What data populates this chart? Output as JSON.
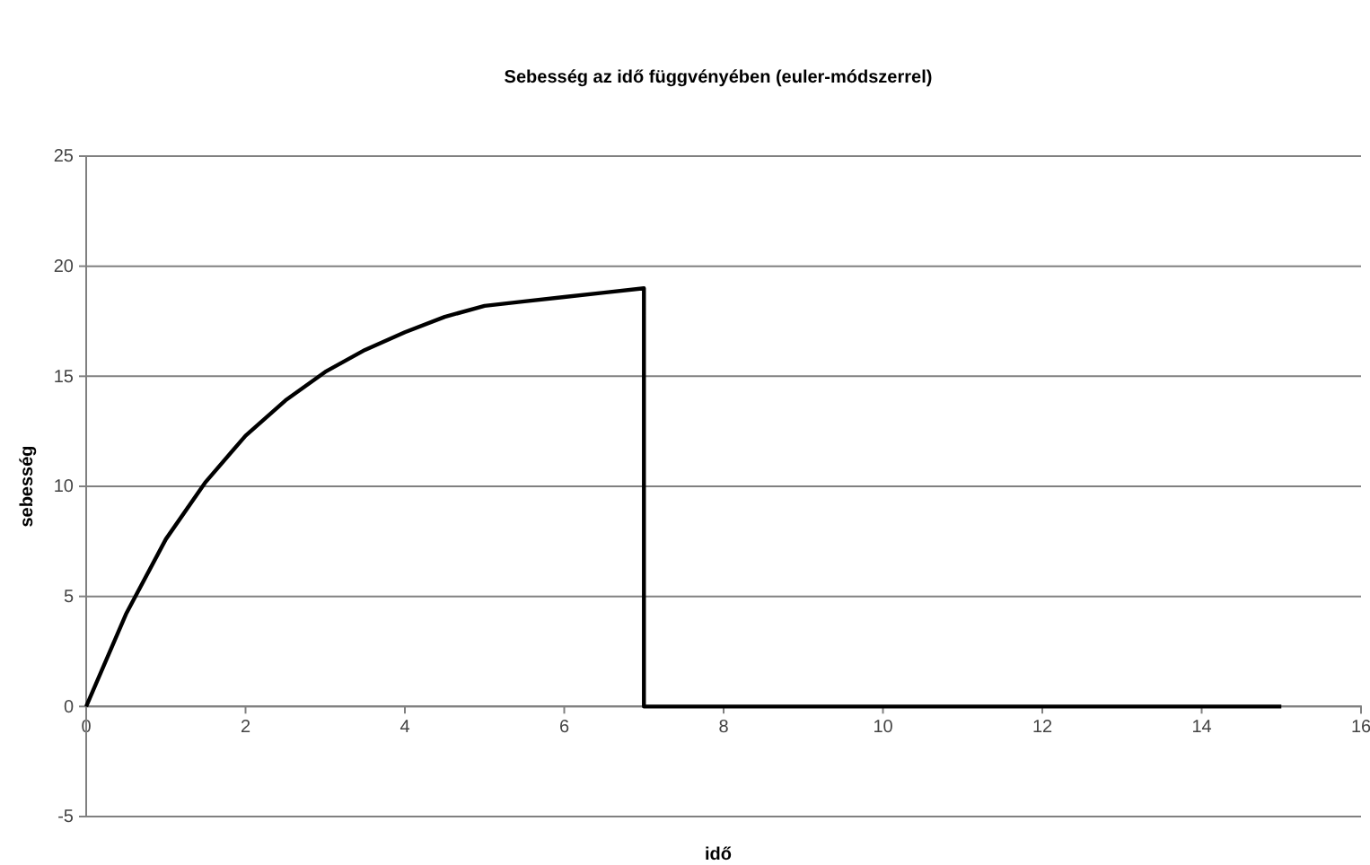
{
  "chart_data": {
    "type": "line",
    "title": "Sebesség az idő függvényében (euler-módszerrel)",
    "xlabel": "idő",
    "ylabel": "sebesség",
    "x": [
      0,
      0.5,
      1,
      1.5,
      2,
      2.5,
      3,
      3.5,
      4,
      4.5,
      5,
      5.5,
      6,
      6.5,
      7,
      7,
      15
    ],
    "series": [
      {
        "color": "#000000",
        "values": [
          0,
          4.2,
          7.6,
          10.2,
          12.3,
          13.9,
          15.2,
          16.2,
          17.0,
          17.7,
          18.2,
          18.4,
          18.6,
          18.8,
          19.0,
          0,
          0
        ]
      }
    ],
    "xlim": [
      0,
      16
    ],
    "xticks": [
      0,
      2,
      4,
      6,
      8,
      10,
      12,
      14,
      16
    ],
    "ylim": [
      -5,
      25
    ],
    "yticks": [
      -5,
      0,
      5,
      10,
      15,
      20,
      25
    ],
    "grid": "y",
    "marker": "none",
    "line_style": "solid"
  }
}
